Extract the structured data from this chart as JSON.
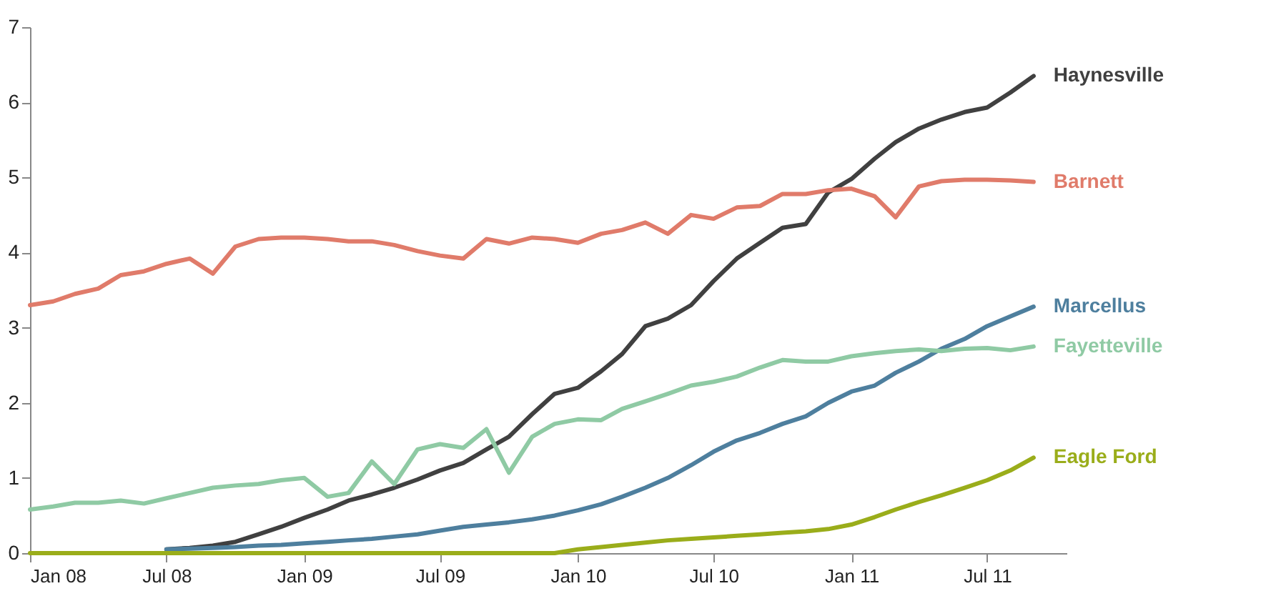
{
  "chart_data": {
    "type": "line",
    "x": [
      "2008-01",
      "2008-02",
      "2008-03",
      "2008-04",
      "2008-05",
      "2008-06",
      "2008-07",
      "2008-08",
      "2008-09",
      "2008-10",
      "2008-11",
      "2008-12",
      "2009-01",
      "2009-02",
      "2009-03",
      "2009-04",
      "2009-05",
      "2009-06",
      "2009-07",
      "2009-08",
      "2009-09",
      "2009-10",
      "2009-11",
      "2009-12",
      "2010-01",
      "2010-02",
      "2010-03",
      "2010-04",
      "2010-05",
      "2010-06",
      "2010-07",
      "2010-08",
      "2010-09",
      "2010-10",
      "2010-11",
      "2010-12",
      "2011-01",
      "2011-02",
      "2011-03",
      "2011-04",
      "2011-05",
      "2011-06",
      "2011-07",
      "2011-08",
      "2011-09"
    ],
    "series": [
      {
        "name": "Haynesville",
        "color": "#404040",
        "values": [
          null,
          null,
          null,
          null,
          null,
          null,
          0.05,
          0.07,
          0.1,
          0.15,
          0.25,
          0.35,
          0.47,
          0.58,
          0.7,
          0.78,
          0.87,
          0.98,
          1.1,
          1.2,
          1.38,
          1.55,
          1.85,
          2.12,
          2.2,
          2.42,
          2.65,
          3.02,
          3.12,
          3.3,
          3.62,
          3.92,
          4.13,
          4.33,
          4.38,
          4.8,
          4.98,
          5.25,
          5.47,
          5.65,
          5.77,
          5.87,
          5.93,
          6.13,
          6.35
        ]
      },
      {
        "name": "Barnett",
        "color": "#e07b6a",
        "values": [
          3.3,
          3.35,
          3.45,
          3.52,
          3.7,
          3.75,
          3.85,
          3.92,
          3.72,
          4.08,
          4.18,
          4.2,
          4.2,
          4.18,
          4.15,
          4.15,
          4.1,
          4.02,
          3.96,
          3.92,
          4.18,
          4.12,
          4.2,
          4.18,
          4.13,
          4.25,
          4.3,
          4.4,
          4.25,
          4.5,
          4.45,
          4.6,
          4.62,
          4.78,
          4.78,
          4.83,
          4.85,
          4.75,
          4.47,
          4.88,
          4.95,
          4.97,
          4.97,
          4.96,
          4.94
        ]
      },
      {
        "name": "Marcellus",
        "color": "#4e7f9e",
        "values": [
          null,
          null,
          null,
          null,
          null,
          null,
          0.05,
          0.06,
          0.07,
          0.08,
          0.1,
          0.11,
          0.13,
          0.15,
          0.17,
          0.19,
          0.22,
          0.25,
          0.3,
          0.35,
          0.38,
          0.41,
          0.45,
          0.5,
          0.57,
          0.65,
          0.75,
          0.87,
          1.0,
          1.17,
          1.35,
          1.5,
          1.6,
          1.72,
          1.82,
          2.0,
          2.15,
          2.23,
          2.4,
          2.55,
          2.72,
          2.85,
          3.02,
          3.15,
          3.28
        ]
      },
      {
        "name": "Fayetteville",
        "color": "#8fcaa4",
        "values": [
          0.58,
          0.62,
          0.67,
          0.67,
          0.7,
          0.66,
          0.73,
          0.8,
          0.87,
          0.9,
          0.92,
          0.97,
          1.0,
          0.75,
          0.8,
          1.22,
          0.92,
          1.38,
          1.45,
          1.4,
          1.65,
          1.07,
          1.55,
          1.72,
          1.78,
          1.77,
          1.92,
          2.02,
          2.12,
          2.23,
          2.28,
          2.35,
          2.47,
          2.57,
          2.55,
          2.55,
          2.62,
          2.66,
          2.69,
          2.71,
          2.69,
          2.72,
          2.73,
          2.7,
          2.75
        ]
      },
      {
        "name": "Eagle Ford",
        "color": "#9aad1a",
        "values": [
          0,
          0,
          0,
          0,
          0,
          0,
          0,
          0,
          0,
          0,
          0,
          0,
          0,
          0,
          0,
          0,
          0,
          0,
          0,
          0,
          0,
          0,
          0,
          0,
          0.05,
          0.08,
          0.11,
          0.14,
          0.17,
          0.19,
          0.21,
          0.23,
          0.25,
          0.27,
          0.29,
          0.32,
          0.38,
          0.48,
          0.58,
          0.68,
          0.77,
          0.87,
          0.97,
          1.1,
          1.27
        ]
      }
    ],
    "xlim": [
      "2008-01",
      "2011-10-15"
    ],
    "xticks": [
      {
        "value": "2008-01",
        "label": "Jan 08"
      },
      {
        "value": "2008-07",
        "label": "Jul 08"
      },
      {
        "value": "2009-01",
        "label": "Jan 09"
      },
      {
        "value": "2009-07",
        "label": "Jul 09"
      },
      {
        "value": "2010-01",
        "label": "Jan 10"
      },
      {
        "value": "2010-07",
        "label": "Jul 10"
      },
      {
        "value": "2011-01",
        "label": "Jan 11"
      },
      {
        "value": "2011-07",
        "label": "Jul 11"
      }
    ],
    "ylim": [
      0,
      7
    ],
    "yticks": [
      0,
      1,
      2,
      3,
      4,
      5,
      6,
      7
    ],
    "grid": false,
    "legend": false,
    "marker": "none",
    "line_style": "solid"
  }
}
